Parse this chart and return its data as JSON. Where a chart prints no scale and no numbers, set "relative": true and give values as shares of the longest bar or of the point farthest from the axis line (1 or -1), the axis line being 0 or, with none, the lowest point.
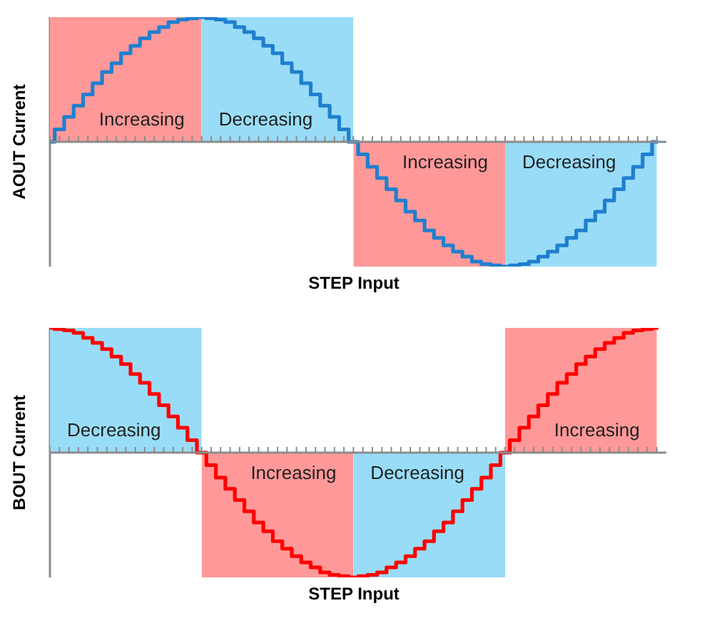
{
  "chart_data": [
    {
      "type": "step",
      "ylabel": "AOUT Current",
      "xlabel": "STEP Input",
      "relative": true,
      "categories": [
        null,
        null,
        null,
        null,
        null,
        null,
        null,
        null,
        null,
        null,
        null,
        null,
        null,
        null,
        null,
        null,
        null,
        null,
        null,
        null,
        null,
        null,
        null,
        null,
        null,
        null,
        null,
        null,
        null,
        null,
        null,
        null,
        null,
        null,
        null,
        null,
        null,
        null,
        null,
        null,
        null,
        null,
        null,
        null,
        null,
        null,
        null,
        null,
        null,
        null,
        null,
        null,
        null,
        null,
        null,
        null,
        null,
        null,
        null,
        null,
        null,
        null,
        null,
        null,
        null
      ],
      "series": [
        {
          "color": "#1f7fcf",
          "values": [
            0,
            0.1,
            0.2,
            0.29,
            0.38,
            0.47,
            0.56,
            0.63,
            0.71,
            0.77,
            0.83,
            0.88,
            0.92,
            0.96,
            0.98,
            0.99,
            1,
            0.99,
            0.98,
            0.96,
            0.92,
            0.88,
            0.83,
            0.77,
            0.71,
            0.63,
            0.56,
            0.47,
            0.38,
            0.29,
            0.2,
            0.1,
            0,
            -0.1,
            -0.2,
            -0.29,
            -0.38,
            -0.47,
            -0.56,
            -0.63,
            -0.71,
            -0.77,
            -0.83,
            -0.88,
            -0.92,
            -0.96,
            -0.98,
            -0.99,
            -1,
            -0.99,
            -0.98,
            -0.96,
            -0.92,
            -0.88,
            -0.83,
            -0.77,
            -0.71,
            -0.63,
            -0.56,
            -0.47,
            -0.38,
            -0.29,
            -0.2,
            -0.1,
            0
          ]
        },
        {
          "type": "area",
          "name": "Increasing",
          "color": "#ff9999",
          "values": [
            1,
            1,
            1,
            1,
            1,
            1,
            1,
            1,
            1,
            1,
            1,
            1,
            1,
            1,
            1,
            1,
            1,
            null,
            null,
            null,
            null,
            null,
            null,
            null,
            null,
            null,
            null,
            null,
            null,
            null,
            null,
            null,
            -1,
            -1,
            -1,
            -1,
            -1,
            -1,
            -1,
            -1,
            -1,
            -1,
            -1,
            -1,
            -1,
            -1,
            -1,
            -1,
            -1,
            null,
            null,
            null,
            null,
            null,
            null,
            null,
            null,
            null,
            null,
            null,
            null,
            null,
            null,
            null,
            null
          ]
        },
        {
          "type": "area",
          "name": "Decreasing",
          "color": "#99dcf7",
          "values": [
            null,
            null,
            null,
            null,
            null,
            null,
            null,
            null,
            null,
            null,
            null,
            null,
            null,
            null,
            null,
            null,
            1,
            1,
            1,
            1,
            1,
            1,
            1,
            1,
            1,
            1,
            1,
            1,
            1,
            1,
            1,
            1,
            1,
            null,
            null,
            null,
            null,
            null,
            null,
            null,
            null,
            null,
            null,
            null,
            null,
            null,
            null,
            null,
            -1,
            -1,
            -1,
            -1,
            -1,
            -1,
            -1,
            -1,
            -1,
            -1,
            -1,
            -1,
            -1,
            -1,
            -1,
            -1,
            -1
          ]
        }
      ]
    },
    {
      "type": "step",
      "ylabel": "BOUT Current",
      "xlabel": "STEP Input",
      "relative": true,
      "categories": [
        null,
        null,
        null,
        null,
        null,
        null,
        null,
        null,
        null,
        null,
        null,
        null,
        null,
        null,
        null,
        null,
        null,
        null,
        null,
        null,
        null,
        null,
        null,
        null,
        null,
        null,
        null,
        null,
        null,
        null,
        null,
        null,
        null,
        null,
        null,
        null,
        null,
        null,
        null,
        null,
        null,
        null,
        null,
        null,
        null,
        null,
        null,
        null,
        null,
        null,
        null,
        null,
        null,
        null,
        null,
        null,
        null,
        null,
        null,
        null,
        null,
        null,
        null,
        null,
        null
      ],
      "series": [
        {
          "color": "#ff0000",
          "values": [
            1,
            0.99,
            0.98,
            0.96,
            0.92,
            0.88,
            0.83,
            0.77,
            0.71,
            0.63,
            0.56,
            0.47,
            0.38,
            0.29,
            0.2,
            0.1,
            0,
            -0.1,
            -0.2,
            -0.29,
            -0.38,
            -0.47,
            -0.56,
            -0.63,
            -0.71,
            -0.77,
            -0.83,
            -0.88,
            -0.92,
            -0.96,
            -0.98,
            -0.99,
            -1,
            -0.99,
            -0.98,
            -0.96,
            -0.92,
            -0.88,
            -0.83,
            -0.77,
            -0.71,
            -0.63,
            -0.56,
            -0.47,
            -0.38,
            -0.29,
            -0.2,
            -0.1,
            0,
            0.1,
            0.2,
            0.29,
            0.38,
            0.47,
            0.56,
            0.63,
            0.71,
            0.77,
            0.83,
            0.88,
            0.92,
            0.96,
            0.98,
            0.99,
            1
          ]
        },
        {
          "type": "area",
          "name": "Decreasing",
          "color": "#99dcf7",
          "values": [
            1,
            1,
            1,
            1,
            1,
            1,
            1,
            1,
            1,
            1,
            1,
            1,
            1,
            1,
            1,
            1,
            1,
            null,
            null,
            null,
            null,
            null,
            null,
            null,
            null,
            null,
            null,
            null,
            null,
            null,
            null,
            null,
            -1,
            -1,
            -1,
            -1,
            -1,
            -1,
            -1,
            -1,
            -1,
            -1,
            -1,
            -1,
            -1,
            -1,
            -1,
            -1,
            -1,
            null,
            null,
            null,
            null,
            null,
            null,
            null,
            null,
            null,
            null,
            null,
            null,
            null,
            null,
            null,
            null
          ]
        },
        {
          "type": "area",
          "name": "Increasing",
          "color": "#ff9999",
          "values": [
            null,
            null,
            null,
            null,
            null,
            null,
            null,
            null,
            null,
            null,
            null,
            null,
            null,
            null,
            null,
            null,
            -1,
            -1,
            -1,
            -1,
            -1,
            -1,
            -1,
            -1,
            -1,
            -1,
            -1,
            -1,
            -1,
            -1,
            -1,
            -1,
            -1,
            null,
            null,
            null,
            null,
            null,
            null,
            null,
            null,
            null,
            null,
            null,
            null,
            null,
            null,
            null,
            1,
            1,
            1,
            1,
            1,
            1,
            1,
            1,
            1,
            1,
            1,
            1,
            1,
            1,
            1,
            1,
            1
          ]
        }
      ]
    }
  ]
}
